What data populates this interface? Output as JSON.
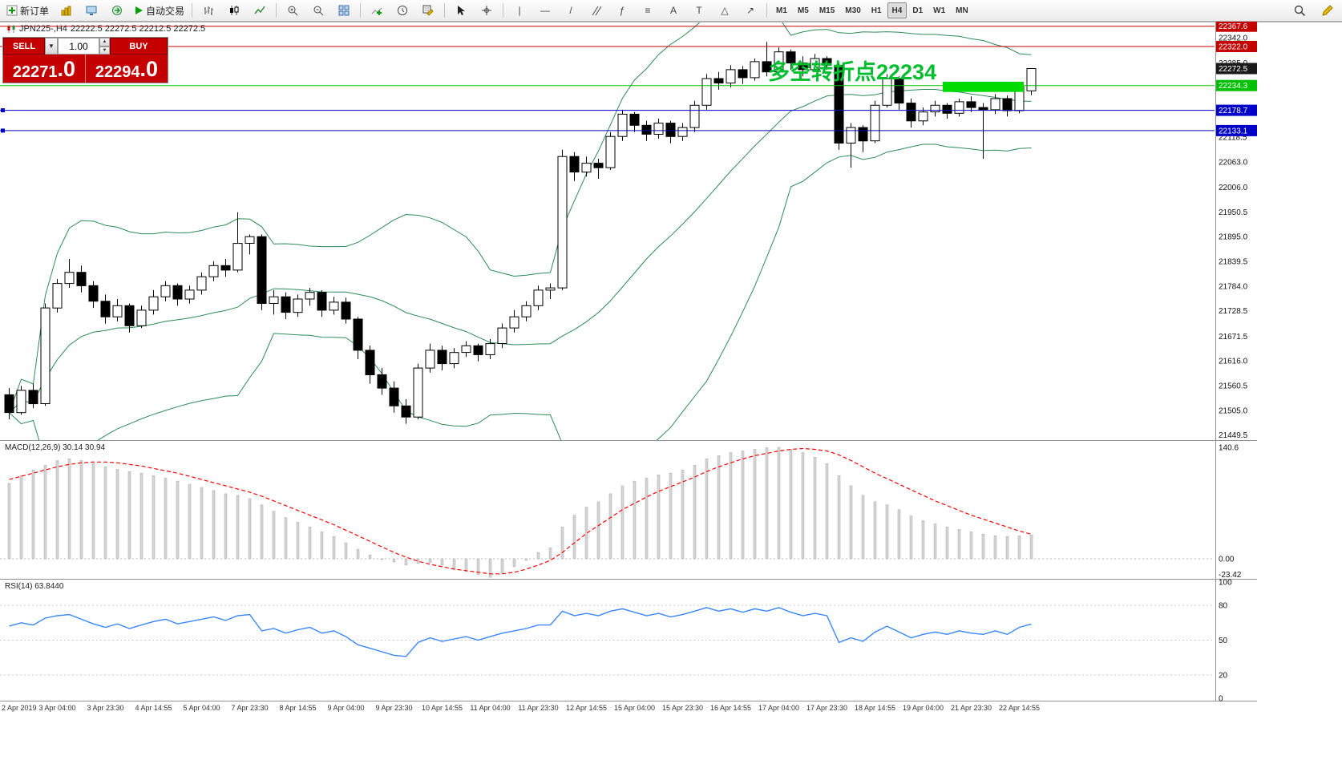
{
  "toolbar": {
    "new_order_label": "新订单",
    "autotrading_label": "自动交易",
    "timeframes": [
      "M1",
      "M5",
      "M15",
      "M30",
      "H1",
      "H4",
      "D1",
      "W1",
      "MN"
    ],
    "active_timeframe": "H4"
  },
  "title_bar": {
    "symbol": "JPN225-,H4",
    "ohlc_text": "22222.5 22272.5 22212.5 22272.5"
  },
  "trade": {
    "sell_label": "SELL",
    "buy_label": "BUY",
    "volume": "1.00",
    "sell_price_main": "22271",
    "sell_price_frac": ".0",
    "buy_price_main": "22294",
    "buy_price_frac": ".0",
    "panel_color": "#C40000"
  },
  "annotation": {
    "text": "多空转折点22234",
    "color": "#00BE2E"
  },
  "colors": {
    "bollinger": "#2E8B57",
    "candle_up_fill": "#FFFFFF",
    "candle_down_fill": "#000000",
    "candle_stroke": "#000000",
    "macd_hist_fill": "#D6D6D6",
    "macd_hist_stroke": "#A8A8A8",
    "macd_signal": "#FF0000",
    "rsi_line": "#3A86FF",
    "axis_text": "#111111",
    "highlight": "#00DC00"
  },
  "chart_data": {
    "type": "candlestick",
    "symbol": "JPN225-",
    "timeframe": "H4",
    "title": "JPN225-,H4 22222.5 22272.5 22212.5 22272.5",
    "bollinger": {
      "period": 20,
      "deviation": 2
    },
    "ohlc": [
      [
        21540,
        21555,
        21485,
        21500
      ],
      [
        21500,
        21560,
        21495,
        21550
      ],
      [
        21550,
        21565,
        21510,
        21520
      ],
      [
        21520,
        21745,
        21515,
        21735
      ],
      [
        21735,
        21800,
        21725,
        21790
      ],
      [
        21790,
        21845,
        21780,
        21815
      ],
      [
        21815,
        21830,
        21770,
        21785
      ],
      [
        21785,
        21795,
        21735,
        21750
      ],
      [
        21750,
        21765,
        21700,
        21715
      ],
      [
        21715,
        21755,
        21705,
        21740
      ],
      [
        21740,
        21745,
        21680,
        21695
      ],
      [
        21695,
        21740,
        21690,
        21730
      ],
      [
        21730,
        21775,
        21720,
        21760
      ],
      [
        21760,
        21795,
        21750,
        21785
      ],
      [
        21785,
        21790,
        21740,
        21755
      ],
      [
        21755,
        21785,
        21745,
        21775
      ],
      [
        21775,
        21815,
        21765,
        21805
      ],
      [
        21805,
        21840,
        21795,
        21830
      ],
      [
        21830,
        21845,
        21805,
        21820
      ],
      [
        21820,
        21950,
        21815,
        21880
      ],
      [
        21880,
        21900,
        21855,
        21895
      ],
      [
        21895,
        21900,
        21730,
        21745
      ],
      [
        21745,
        21775,
        21720,
        21760
      ],
      [
        21760,
        21770,
        21710,
        21725
      ],
      [
        21725,
        21765,
        21715,
        21755
      ],
      [
        21755,
        21780,
        21740,
        21770
      ],
      [
        21770,
        21775,
        21715,
        21730
      ],
      [
        21730,
        21760,
        21720,
        21748
      ],
      [
        21748,
        21758,
        21700,
        21710
      ],
      [
        21710,
        21715,
        21620,
        21640
      ],
      [
        21640,
        21650,
        21565,
        21585
      ],
      [
        21585,
        21600,
        21540,
        21555
      ],
      [
        21555,
        21570,
        21500,
        21515
      ],
      [
        21515,
        21530,
        21475,
        21490
      ],
      [
        21490,
        21610,
        21485,
        21600
      ],
      [
        21600,
        21655,
        21590,
        21640
      ],
      [
        21640,
        21650,
        21595,
        21610
      ],
      [
        21610,
        21645,
        21600,
        21635
      ],
      [
        21635,
        21660,
        21625,
        21650
      ],
      [
        21650,
        21655,
        21615,
        21630
      ],
      [
        21630,
        21665,
        21620,
        21655
      ],
      [
        21655,
        21700,
        21645,
        21690
      ],
      [
        21690,
        21730,
        21680,
        21715
      ],
      [
        21715,
        21750,
        21705,
        21740
      ],
      [
        21740,
        21785,
        21730,
        21775
      ],
      [
        21775,
        21790,
        21755,
        21780
      ],
      [
        21780,
        22090,
        21775,
        22075
      ],
      [
        22075,
        22085,
        22020,
        22040
      ],
      [
        22040,
        22075,
        22030,
        22060
      ],
      [
        22060,
        22070,
        22025,
        22050
      ],
      [
        22050,
        22130,
        22045,
        22120
      ],
      [
        22120,
        22180,
        22110,
        22170
      ],
      [
        22170,
        22175,
        22130,
        22145
      ],
      [
        22145,
        22155,
        22110,
        22125
      ],
      [
        22125,
        22160,
        22115,
        22150
      ],
      [
        22150,
        22155,
        22105,
        22120
      ],
      [
        22120,
        22150,
        22110,
        22140
      ],
      [
        22140,
        22200,
        22130,
        22190
      ],
      [
        22190,
        22260,
        22180,
        22250
      ],
      [
        22250,
        22265,
        22225,
        22240
      ],
      [
        22240,
        22280,
        22230,
        22270
      ],
      [
        22270,
        22278,
        22238,
        22252
      ],
      [
        22252,
        22295,
        22245,
        22288
      ],
      [
        22288,
        22332,
        22255,
        22265
      ],
      [
        22265,
        22320,
        22258,
        22310
      ],
      [
        22310,
        22315,
        22270,
        22285
      ],
      [
        22285,
        22300,
        22255,
        22270
      ],
      [
        22270,
        22305,
        22265,
        22295
      ],
      [
        22295,
        22300,
        22270,
        22280
      ],
      [
        22280,
        22285,
        22090,
        22105
      ],
      [
        22105,
        22150,
        22050,
        22140
      ],
      [
        22140,
        22145,
        22085,
        22110
      ],
      [
        22110,
        22200,
        22105,
        22190
      ],
      [
        22190,
        22260,
        22185,
        22250
      ],
      [
        22250,
        22255,
        22180,
        22195
      ],
      [
        22195,
        22205,
        22140,
        22155
      ],
      [
        22155,
        22185,
        22145,
        22175
      ],
      [
        22175,
        22200,
        22165,
        22190
      ],
      [
        22190,
        22195,
        22160,
        22172
      ],
      [
        22172,
        22205,
        22165,
        22198
      ],
      [
        22198,
        22210,
        22175,
        22185
      ],
      [
        22185,
        22195,
        22070,
        22180
      ],
      [
        22180,
        22215,
        22170,
        22205
      ],
      [
        22205,
        22212,
        22165,
        22178
      ],
      [
        22178,
        22240,
        22172,
        22232
      ],
      [
        22222.5,
        22272.5,
        22212.5,
        22272.5
      ]
    ],
    "time_labels": [
      "2 Apr 2019",
      "3 Apr 04:00",
      "3 Apr 23:30",
      "4 Apr 14:55",
      "5 Apr 04:00",
      "7 Apr 23:30",
      "8 Apr 14:55",
      "9 Apr 04:00",
      "9 Apr 23:30",
      "10 Apr 14:55",
      "11 Apr 04:00",
      "11 Apr 23:30",
      "12 Apr 14:55",
      "15 Apr 04:00",
      "15 Apr 23:30",
      "16 Apr 14:55",
      "17 Apr 04:00",
      "17 Apr 23:30",
      "18 Apr 14:55",
      "19 Apr 04:00",
      "21 Apr 23:30",
      "22 Apr 14:55"
    ],
    "price_axis_ticks": [
      22342.0,
      22285.0,
      22118.5,
      22063.0,
      22006.0,
      21950.5,
      21895.0,
      21839.5,
      21784.0,
      21728.5,
      21671.5,
      21616.0,
      21560.5,
      21505.0,
      21449.5
    ],
    "price_lines": [
      {
        "label": "22367.6",
        "price": 22367.6,
        "color": "#C40000",
        "line": true,
        "handle": false
      },
      {
        "label": "22322.0",
        "price": 22322.0,
        "color": "#C40000",
        "line": true,
        "handle": false
      },
      {
        "label": "22272.5",
        "price": 22272.5,
        "color": "#1A1A1A",
        "line": false,
        "handle": false
      },
      {
        "label": "22234.3",
        "price": 22234.3,
        "color": "#00C000",
        "line": true,
        "handle": false
      },
      {
        "label": "22178.7",
        "price": 22178.7,
        "color": "#0000C8",
        "line": true,
        "handle": true
      },
      {
        "label": "22133.1",
        "price": 22133.1,
        "color": "#0000C8",
        "line": true,
        "handle": true
      }
    ],
    "highlight": {
      "from_candle": 78,
      "to_candle": 84,
      "price_top": 22243,
      "price_bottom": 22220,
      "color": "#00DC00"
    },
    "macd": {
      "label": "MACD(12,26,9) 30.14 30.94",
      "axis": [
        {
          "v": 140.6,
          "label": "140.6"
        },
        {
          "v": 0,
          "label": "0.00"
        },
        {
          "v": -23.42,
          "label": "-23.42"
        }
      ],
      "hist": [
        95,
        105,
        112,
        118,
        124,
        126,
        124,
        120,
        116,
        113,
        110,
        108,
        105,
        102,
        98,
        94,
        90,
        86,
        82,
        80,
        76,
        68,
        60,
        52,
        46,
        40,
        34,
        28,
        20,
        12,
        5,
        0,
        -4,
        -8,
        -6,
        -5,
        -8,
        -12,
        -16,
        -20,
        -23.4,
        -18,
        -10,
        -2,
        8,
        14,
        40,
        55,
        65,
        72,
        82,
        92,
        98,
        102,
        106,
        108,
        112,
        118,
        126,
        130,
        134,
        136,
        138,
        140,
        140.6,
        138,
        134,
        128,
        120,
        105,
        92,
        80,
        72,
        68,
        62,
        54,
        48,
        44,
        40,
        37,
        34,
        31,
        29,
        28,
        29,
        30.14
      ],
      "signal": [
        100,
        104,
        108,
        112,
        116,
        119,
        121,
        122,
        122,
        121,
        119,
        117,
        114,
        111,
        108,
        104,
        100,
        96,
        92,
        88,
        84,
        79,
        73,
        67,
        61,
        55,
        49,
        43,
        36,
        29,
        22,
        15,
        8,
        2,
        -3,
        -7,
        -10,
        -13,
        -15,
        -17,
        -19,
        -19,
        -17,
        -13,
        -8,
        -2,
        8,
        20,
        32,
        42,
        52,
        62,
        70,
        78,
        85,
        91,
        97,
        103,
        110,
        116,
        121,
        126,
        130,
        133,
        136,
        138,
        139,
        138,
        136,
        131,
        124,
        116,
        108,
        101,
        94,
        87,
        80,
        73,
        67,
        61,
        55,
        50,
        45,
        40,
        35,
        30.94
      ]
    },
    "rsi": {
      "label": "RSI(14) 63.8440",
      "axis": [
        100,
        80,
        50,
        20,
        0
      ],
      "levels": [
        80,
        50,
        20
      ],
      "values": [
        62,
        65,
        63,
        69,
        71,
        72,
        68,
        64,
        61,
        64,
        60,
        63,
        66,
        68,
        64,
        66,
        68,
        70,
        67,
        71,
        72,
        58,
        60,
        56,
        59,
        61,
        56,
        58,
        53,
        46,
        43,
        40,
        37,
        36,
        48,
        52,
        49,
        51,
        53,
        50,
        53,
        56,
        58,
        60,
        63,
        63,
        75,
        71,
        73,
        71,
        75,
        77,
        74,
        71,
        73,
        70,
        72,
        75,
        78,
        75,
        77,
        74,
        77,
        75,
        78,
        74,
        71,
        73,
        71,
        48,
        52,
        49,
        57,
        62,
        57,
        52,
        55,
        57,
        55,
        58,
        56,
        55,
        58,
        55,
        61,
        63.84
      ]
    }
  }
}
